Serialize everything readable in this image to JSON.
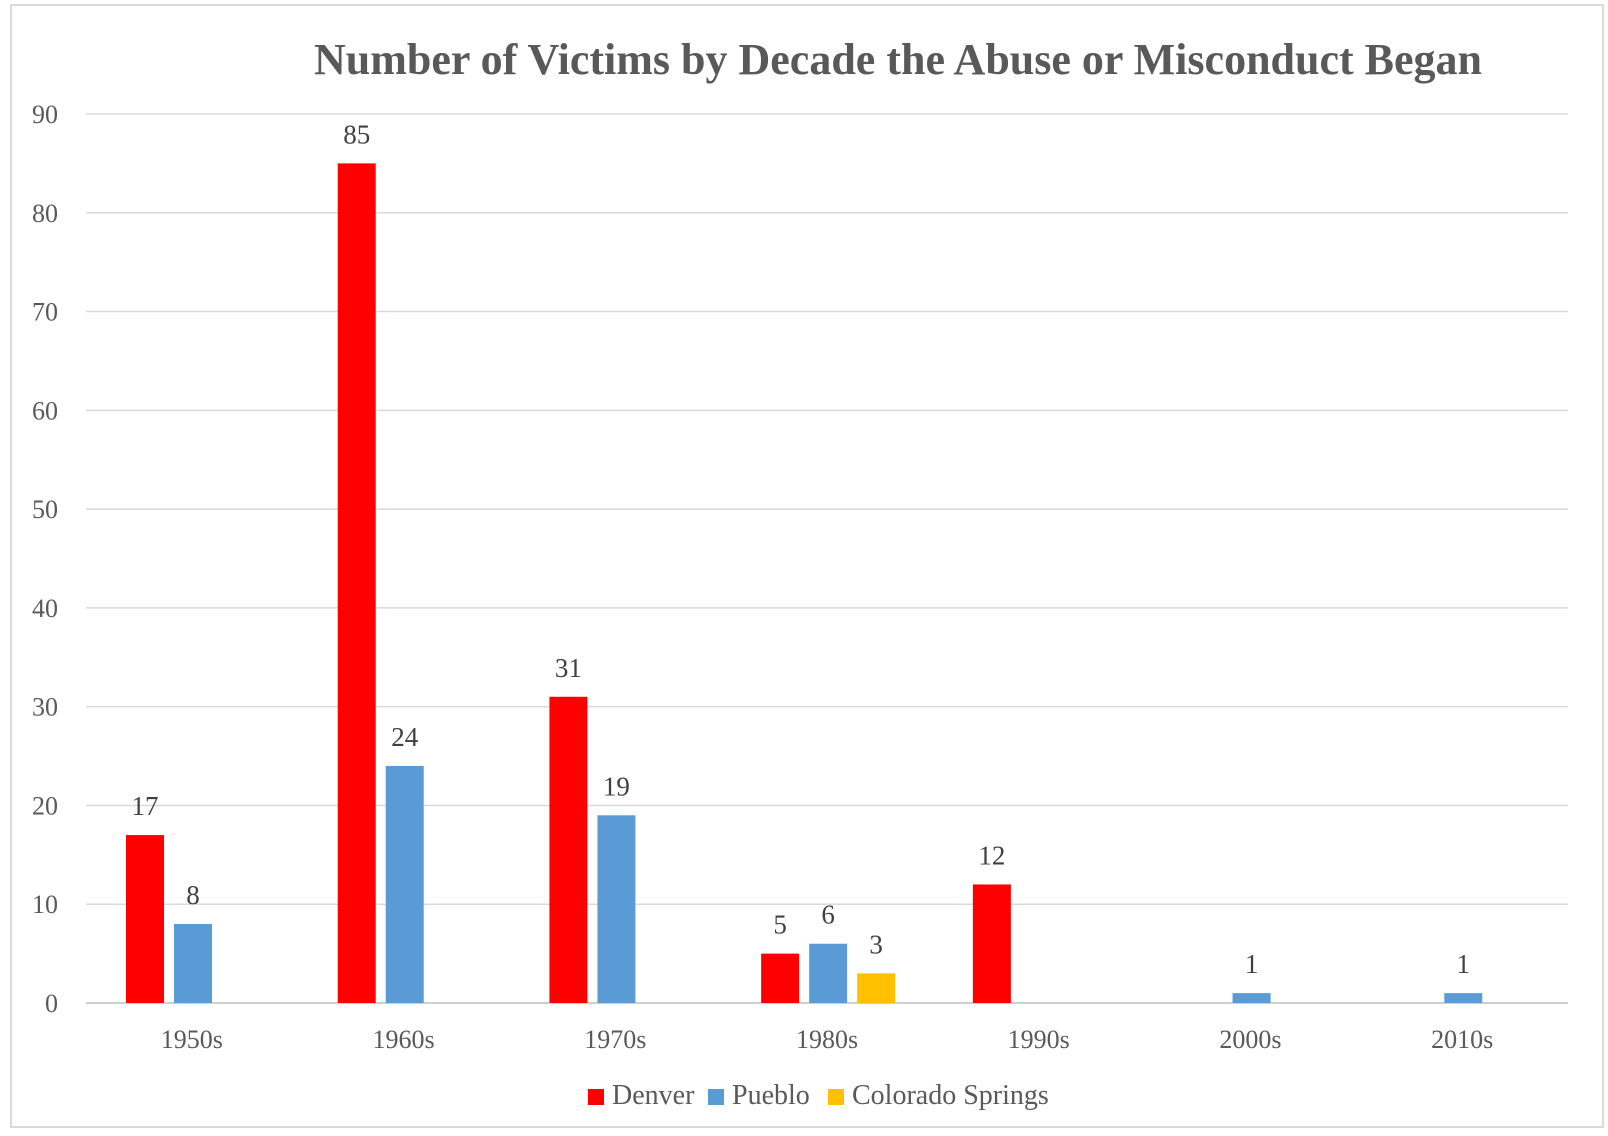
{
  "chart_data": {
    "type": "bar",
    "title": "Number of Victims by Decade the Abuse or Misconduct Began",
    "xlabel": "",
    "ylabel": "",
    "ylim": [
      0,
      90
    ],
    "yticks": [
      0,
      10,
      20,
      30,
      40,
      50,
      60,
      70,
      80,
      90
    ],
    "grid": true,
    "legend_position": "bottom",
    "categories": [
      "1950s",
      "1960s",
      "1970s",
      "1980s",
      "1990s",
      "2000s",
      "2010s"
    ],
    "series": [
      {
        "name": "Denver",
        "color": "#ff0000",
        "values": [
          17,
          85,
          31,
          5,
          12,
          null,
          null
        ]
      },
      {
        "name": "Pueblo",
        "color": "#5b9bd5",
        "values": [
          8,
          24,
          19,
          6,
          null,
          1,
          1
        ]
      },
      {
        "name": "Colorado Springs",
        "color": "#ffc000",
        "values": [
          null,
          null,
          null,
          3,
          null,
          null,
          null
        ]
      }
    ]
  }
}
